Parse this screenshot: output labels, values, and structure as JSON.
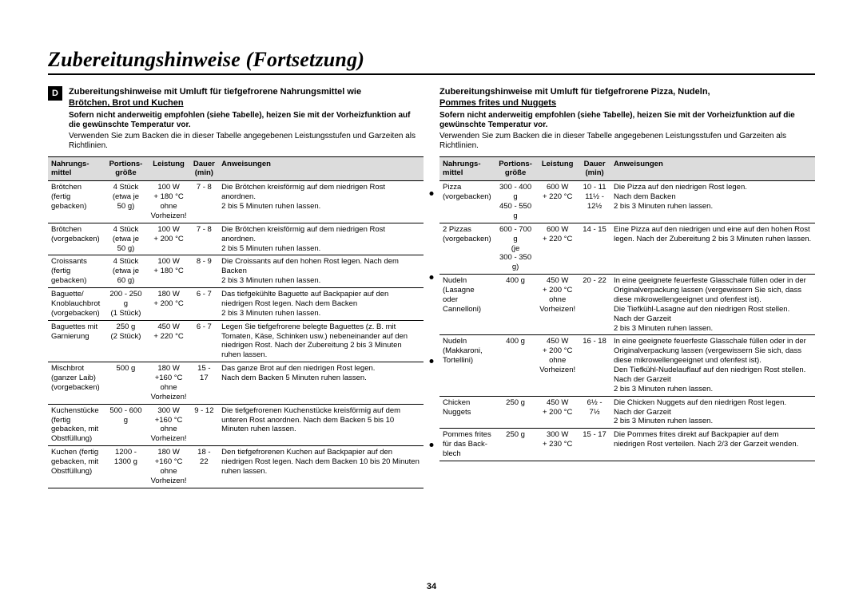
{
  "page": {
    "title": "Zubereitungshinweise (Fortsetzung)",
    "badge": "D",
    "page_number": "34"
  },
  "colors": {
    "header_bg": "#dcdcdc",
    "border": "#000000",
    "text": "#000000",
    "badge_bg": "#000000",
    "badge_fg": "#ffffff",
    "background": "#ffffff"
  },
  "typography": {
    "title_family": "Georgia, 'Times New Roman', serif",
    "title_size_pt": 20,
    "body_size_pt": 7.5,
    "header_size_pt": 8.5
  },
  "left": {
    "heading_line1": "Zubereitungshinweise mit Umluft für tiefgefrorene Nahrungsmittel wie",
    "heading_line2": "Brötchen, Brot und Kuchen",
    "intro_bold": "Sofern nicht anderweitig empfohlen (siehe Tabelle), heizen Sie mit der Vorheizfunktion auf die gewünschte Temperatur vor.",
    "intro": "Verwenden Sie zum Backen die in dieser Tabelle angegebenen Leistungsstufen und Garzeiten als Richtlinien.",
    "columns": {
      "food_l1": "Nahrungs-",
      "food_l2": "mittel",
      "portion_l1": "Portions-",
      "portion_l2": "größe",
      "power": "Leistung",
      "time_l1": "Dauer",
      "time_l2": "(min)",
      "instr": "Anweisungen"
    },
    "rows": [
      {
        "food": "Brötchen (fertig\ngebacken)",
        "portion": "4 Stück\n(etwa je 50 g)",
        "power": "100 W\n+ 180 °C\nohne\nVorheizen!",
        "time": "7 - 8",
        "instr": "Die Brötchen kreisförmig auf dem niedrigen Rost anordnen.\n2 bis 5 Minuten ruhen lassen."
      },
      {
        "food": "Brötchen\n(vorgebacken)",
        "portion": "4 Stück\n(etwa je 50 g)",
        "power": "100 W\n+ 200 °C",
        "time": "7 - 8",
        "instr": "Die Brötchen kreisförmig auf dem niedrigen Rost anordnen.\n2 bis 5 Minuten ruhen lassen."
      },
      {
        "food": "Croissants\n(fertig\ngebacken)",
        "portion": "4 Stück\n(etwa je 60 g)",
        "power": "100 W\n+ 180 °C",
        "time": "8 - 9",
        "instr": "Die Croissants auf den hohen Rost legen. Nach dem Backen\n2 bis 3 Minuten ruhen lassen."
      },
      {
        "food": "Baguette/\nKnoblauchbrot\n(vorgebacken)",
        "portion": "200 - 250 g\n(1 Stück)",
        "power": "180 W\n+ 200 °C",
        "time": "6 - 7",
        "instr": "Das tiefgekühlte Baguette auf Backpapier auf den niedrigen Rost legen. Nach dem Backen\n2 bis 3 Minuten ruhen lassen."
      },
      {
        "food": "Baguettes mit\nGarnierung",
        "portion": "250 g\n(2 Stück)",
        "power": "450 W\n+ 220 °C",
        "time": "6 - 7",
        "instr": "Legen Sie tiefgefrorene belegte Baguettes (z. B. mit Tomaten, Käse, Schinken usw.) nebeneinander auf den niedrigen Rost. Nach der Zubereitung 2 bis 3 Minuten ruhen lassen."
      },
      {
        "food": "Mischbrot\n(ganzer Laib)\n(vorgebacken)",
        "portion": "500 g",
        "power": "180 W\n+160 °C\nohne\nVorheizen!",
        "time": "15 - 17",
        "instr": "Das ganze Brot auf den niedrigen Rost legen.\nNach dem Backen 5 Minuten ruhen lassen."
      },
      {
        "food": "Kuchenstücke\n(fertig\ngebacken, mit\nObstfüllung)",
        "portion": "500 - 600 g",
        "power": "300 W\n+160 °C\nohne\nVorheizen!",
        "time": "9 - 12",
        "instr": "Die tiefgefrorenen Kuchenstücke kreisförmig auf dem unteren Rost anordnen. Nach dem Backen 5 bis 10 Minuten ruhen lassen."
      },
      {
        "food": "Kuchen (fertig\ngebacken, mit\nObstfüllung)",
        "portion": "1200 - 1300 g",
        "power": "180 W\n+160 °C\nohne\nVorheizen!",
        "time": "18 - 22",
        "instr": "Den tiefgefrorenen Kuchen auf Backpapier auf den niedrigen Rost legen. Nach dem Backen 10 bis 20 Minuten ruhen lassen."
      }
    ]
  },
  "right": {
    "heading_line1": "Zubereitungshinweise mit Umluft für tiefgefrorene Pizza, Nudeln,",
    "heading_line2": "Pommes frites und Nuggets",
    "intro_bold": "Sofern nicht anderweitig empfohlen (siehe Tabelle), heizen Sie mit der Vorheizfunktion auf die gewünschte Temperatur vor.",
    "intro": "Verwenden Sie zum Backen die in dieser Tabelle angegebenen Leistungsstufen und Garzeiten als Richtlinien.",
    "columns": {
      "food_l1": "Nahrungs-",
      "food_l2": "mittel",
      "portion_l1": "Portions-",
      "portion_l2": "größe",
      "power": "Leistung",
      "time_l1": "Dauer",
      "time_l2": "(min)",
      "instr": "Anweisungen"
    },
    "rows": [
      {
        "food": "Pizza\n(vorgebacken)",
        "portion": "300 - 400 g\n450 - 550 g",
        "power": "600 W\n+ 220 °C",
        "time": "10 - 11\n11½ - 12½",
        "instr": "Die Pizza auf den niedrigen Rost legen.\nNach dem Backen\n2 bis 3 Minuten ruhen lassen."
      },
      {
        "food": "2 Pizzas\n(vorgebacken)",
        "portion": "600 - 700 g\n(je\n300 - 350 g)",
        "power": "600 W\n+ 220 °C",
        "time": "14 - 15",
        "instr": "Eine Pizza auf den niedrigen und eine auf den hohen Rost legen. Nach der Zubereitung 2 bis 3 Minuten ruhen lassen."
      },
      {
        "food": "Nudeln\n(Lasagne oder\nCannelloni)",
        "portion": "400 g",
        "power": "450 W\n+ 200 °C\nohne\nVorheizen!",
        "time": "20 - 22",
        "instr": "In eine geeignete feuerfeste Glasschale füllen oder in der Originalverpackung lassen (vergewissern Sie sich, dass diese mikrowellengeeignet und ofenfest ist).\nDie Tiefkühl-Lasagne auf den niedrigen Rost stellen.\nNach der Garzeit\n2 bis 3 Minuten ruhen lassen."
      },
      {
        "food": "Nudeln\n(Makkaroni,\nTortellini)",
        "portion": "400 g",
        "power": "450 W\n+ 200 °C\nohne\nVorheizen!",
        "time": "16 - 18",
        "instr": "In eine geeignete feuerfeste Glasschale füllen oder in der Originalverpackung lassen (vergewissern Sie sich, dass diese mikrowellengeeignet und ofenfest ist).\nDen Tiefkühl-Nudelauflauf auf den niedrigen Rost stellen.\nNach der Garzeit\n2 bis 3 Minuten ruhen lassen."
      },
      {
        "food": "Chicken\nNuggets",
        "portion": "250 g",
        "power": "450 W\n+ 200 °C",
        "time": "6½ - 7½",
        "instr": "Die Chicken Nuggets auf den niedrigen Rost legen.\nNach der Garzeit\n2 bis 3 Minuten ruhen lassen."
      },
      {
        "food": "Pommes frites\nfür das Back-\nblech",
        "portion": "250 g",
        "power": "300 W\n+ 230 °C",
        "time": "15 - 17",
        "instr": "Die Pommes frites direkt auf Backpapier auf dem niedrigen Rost verteilen. Nach 2/3 der Garzeit wenden."
      }
    ]
  }
}
